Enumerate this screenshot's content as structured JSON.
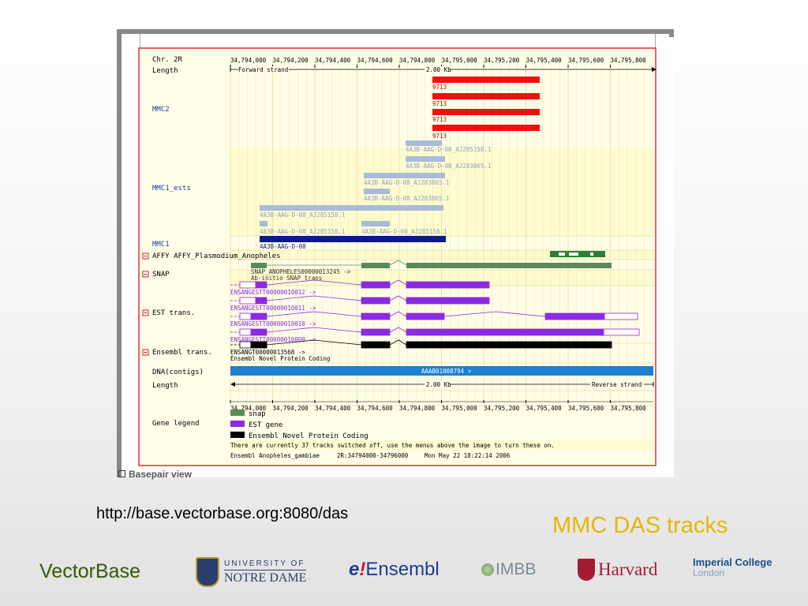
{
  "ruler": {
    "ticks": [
      "34,794,000",
      "34,794,200",
      "34,794,400",
      "34,794,600",
      "34,794,800",
      "34,795,000",
      "34,795,200",
      "34,795,400",
      "34,795,600",
      "34,795,800"
    ],
    "forward_strand": "Forward strand",
    "reverse_strand": "Reverse strand",
    "kb_label": "2.00 Kb"
  },
  "tracks": {
    "chr": "Chr. 2R",
    "length": "Length",
    "mmc2": "MMC2",
    "mmc1_ests": "MMC1_ests",
    "mmc1": "MMC1",
    "affy": "AFFY AFFY_Plasmodium_Anopheles",
    "snap": "SNAP",
    "est_trans": "EST trans.",
    "ensembl_trans": "Ensembl trans.",
    "dna_contigs": "DNA(contigs)",
    "length2": "Length",
    "gene_legend": "Gene legend"
  },
  "features": {
    "mmc2_label": "9713",
    "est_labels": [
      "4A3B-AAG-D-08_AJ285158.1",
      "4A3B-AAG-D-08_AJ283865.1",
      "4A3B-AAG-D-08_AJ283865.1",
      "4A3B-AAG-D-08_AJ283865.1",
      "4A3B-AAG-D-08_AJ285158.1",
      "4A3B-AAG-D-08_AJ285158.1",
      "4A3B-AAG-D-08_AJ285158.1"
    ],
    "mmc1_label": "4A3B-AAG-D-08",
    "snap_id": "SNAP_ANOPHELES00000013245 ->",
    "snap_desc": "Ab-initio SNAP trans",
    "est_trans_ids": [
      "ENSANGESTT00000010012 ->",
      "ENSANGESTT00000010011 ->",
      "ENSANGESTT00000010010 ->",
      "ENSANGESTT00000010009 ->"
    ],
    "ensembl_id": "ENSANGT00000013568 ->",
    "ensembl_desc": "Ensembl Novel Protein Coding",
    "contig": "AAAB01008794 >"
  },
  "legend": {
    "items": [
      {
        "label": "snap",
        "color": "#5a8a5a"
      },
      {
        "label": "EST gene",
        "color": "#8a2be2"
      },
      {
        "label": "Ensembl Novel Protein Coding",
        "color": "#000000"
      }
    ]
  },
  "footer": {
    "tracks_note": "There are currently 37 tracks switched off, use the menus above the image to turn these on.",
    "species": "Ensembl Anopheles_gambiae",
    "region": "2R:34794000-34796000",
    "date": "Mon May 22 18:22:14 2006"
  },
  "basepair_view": "Basepair view",
  "slide": {
    "url": "http://base.vectorbase.org:8080/das",
    "title": "MMC DAS tracks"
  },
  "logos": {
    "vectorbase": "VectorBase",
    "notre_dame_top": "UNIVERSITY OF",
    "notre_dame_bottom": "NOTRE DAME",
    "ensembl_e": "e",
    "ensembl_bang": "!",
    "ensembl": "Ensembl",
    "imbb": "IMBB",
    "harvard": "Harvard",
    "imperial_1": "Imperial College",
    "imperial_2": "London"
  },
  "colors": {
    "mmc2": "#ee1111",
    "est": "#a8bcd8",
    "mmc1": "#0a1a8a",
    "affy": "#2e7d3a",
    "snap": "#5a8a5a",
    "est_trans": "#8a2be2",
    "ensembl": "#000000",
    "contig": "#1e7fcf",
    "panel_bg": "#fffde8",
    "border": "#e03030",
    "title": "#e5b800"
  }
}
